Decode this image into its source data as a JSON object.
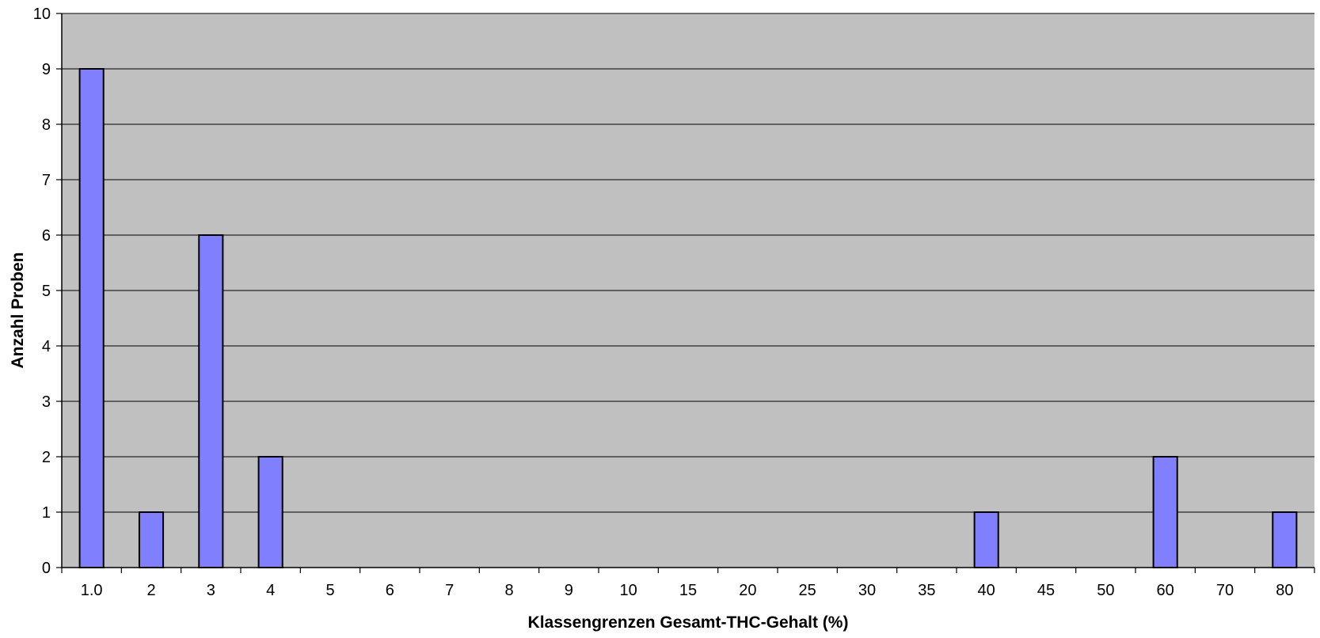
{
  "chart_data": {
    "type": "bar",
    "xlabel": "Klassengrenzen Gesamt-THC-Gehalt (%)",
    "ylabel": "Anzahl Proben",
    "categories": [
      "1.0",
      "2",
      "3",
      "4",
      "5",
      "6",
      "7",
      "8",
      "9",
      "10",
      "15",
      "20",
      "25",
      "30",
      "35",
      "40",
      "45",
      "50",
      "60",
      "70",
      "80"
    ],
    "values": [
      9,
      1,
      6,
      2,
      0,
      0,
      0,
      0,
      0,
      0,
      0,
      0,
      0,
      0,
      0,
      1,
      0,
      0,
      2,
      0,
      1
    ],
    "ylim": [
      0,
      10
    ],
    "yticks": [
      0,
      1,
      2,
      3,
      4,
      5,
      6,
      7,
      8,
      9,
      10
    ],
    "grid": true,
    "legend": "none",
    "colors": {
      "plot_background": "#c0c0c0",
      "bar_fill": "#8080ff",
      "bar_stroke": "#000000",
      "gridline": "#000000"
    }
  }
}
